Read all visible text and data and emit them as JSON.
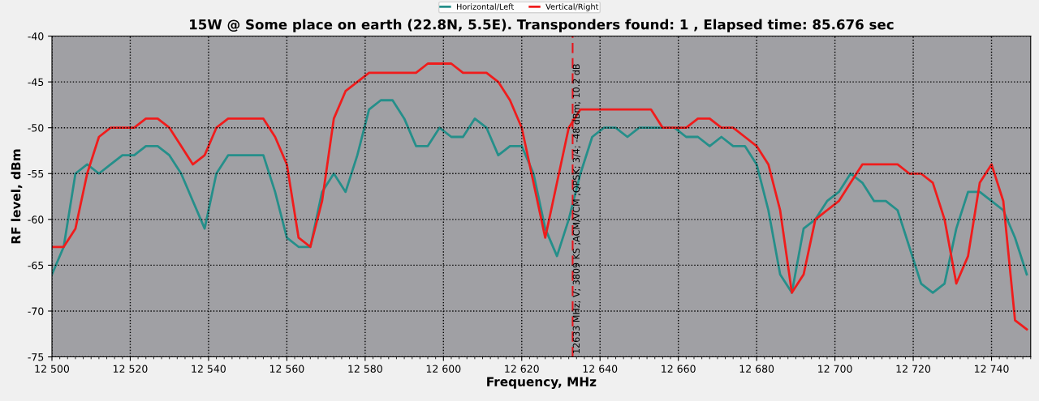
{
  "chart_data": {
    "type": "line",
    "title": "15W @ Some place on earth (22.8N, 5.5E). Transponders found: 1 , Elapsed time: 85.676 sec",
    "xlabel": "Frequency, MHz",
    "ylabel": "RF level, dBm",
    "x": [
      12500,
      12503,
      12506,
      12509,
      12512,
      12515,
      12518,
      12521,
      12524,
      12527,
      12530,
      12533,
      12536,
      12539,
      12542,
      12545,
      12548,
      12551,
      12554,
      12557,
      12560,
      12563,
      12566,
      12569,
      12572,
      12575,
      12578,
      12581,
      12584,
      12587,
      12590,
      12593,
      12596,
      12599,
      12602,
      12605,
      12608,
      12611,
      12614,
      12617,
      12620,
      12623,
      12626,
      12629,
      12632,
      12635,
      12638,
      12641,
      12644,
      12647,
      12650,
      12653,
      12656,
      12659,
      12662,
      12665,
      12668,
      12671,
      12674,
      12677,
      12680,
      12683,
      12686,
      12689,
      12692,
      12695,
      12698,
      12701,
      12704,
      12707,
      12710,
      12713,
      12716,
      12719,
      12722,
      12725,
      12728,
      12731,
      12734,
      12737,
      12740,
      12743,
      12746,
      12749
    ],
    "series": [
      {
        "name": "Horizontal/Left",
        "color": "#258f8a",
        "values": [
          -66,
          -63,
          -55,
          -54,
          -55,
          -54,
          -53,
          -53,
          -52,
          -52,
          -53,
          -55,
          -58,
          -61,
          -55,
          -53,
          -53,
          -53,
          -53,
          -57,
          -62,
          -63,
          -63,
          -57,
          -55,
          -57,
          -53,
          -48,
          -47,
          -47,
          -49,
          -52,
          -52,
          -50,
          -51,
          -51,
          -49,
          -50,
          -53,
          -52,
          -52,
          -55,
          -61,
          -64,
          -60,
          -55,
          -51,
          -50,
          -50,
          -51,
          -50,
          -50,
          -50,
          -50,
          -51,
          -51,
          -52,
          -51,
          -52,
          -52,
          -54,
          -59,
          -66,
          -68,
          -61,
          -60,
          -58,
          -57,
          -55,
          -56,
          -58,
          -58,
          -59,
          -63,
          -67,
          -68,
          -67,
          -61,
          -57,
          -57,
          -58,
          -59,
          -62,
          -66
        ]
      },
      {
        "name": "Vertical/Right",
        "color": "#f01c1c",
        "values": [
          -63,
          -63,
          -61,
          -55,
          -51,
          -50,
          -50,
          -50,
          -49,
          -49,
          -50,
          -52,
          -54,
          -53,
          -50,
          -49,
          -49,
          -49,
          -49,
          -51,
          -54,
          -62,
          -63,
          -58,
          -49,
          -46,
          -45,
          -44,
          -44,
          -44,
          -44,
          -44,
          -43,
          -43,
          -43,
          -44,
          -44,
          -44,
          -45,
          -47,
          -50,
          -56,
          -62,
          -56,
          -50,
          -48,
          -48,
          -48,
          -48,
          -48,
          -48,
          -48,
          -50,
          -50,
          -50,
          -49,
          -49,
          -50,
          -50,
          -51,
          -52,
          -54,
          -59,
          -68,
          -66,
          -60,
          -59,
          -58,
          -56,
          -54,
          -54,
          -54,
          -54,
          -55,
          -55,
          -56,
          -60,
          -67,
          -64,
          -56,
          -54,
          -58,
          -71,
          -72
        ]
      }
    ],
    "xlim": [
      12500,
      12750
    ],
    "xticks": [
      {
        "value": 12500,
        "label": "12 500"
      },
      {
        "value": 12520,
        "label": "12 520"
      },
      {
        "value": 12540,
        "label": "12 540"
      },
      {
        "value": 12560,
        "label": "12 560"
      },
      {
        "value": 12580,
        "label": "12 580"
      },
      {
        "value": 12600,
        "label": "12 600"
      },
      {
        "value": 12620,
        "label": "12 620"
      },
      {
        "value": 12640,
        "label": "12 640"
      },
      {
        "value": 12660,
        "label": "12 660"
      },
      {
        "value": 12680,
        "label": "12 680"
      },
      {
        "value": 12700,
        "label": "12 700"
      },
      {
        "value": 12720,
        "label": "12 720"
      },
      {
        "value": 12740,
        "label": "12 740"
      }
    ],
    "ylim": [
      -75,
      -40
    ],
    "yticks": [
      -75,
      -70,
      -65,
      -60,
      -55,
      -50,
      -45,
      -40
    ],
    "ref_lines": [
      {
        "axis": "x",
        "value": 12633,
        "label": "12633 MHz; V; 3809 KS ;ACM/VCM ;QPSK; 3/4; -48 dBm; 10.2 dB",
        "color": "#e8141c",
        "line_style": "dashed"
      }
    ],
    "grid": true,
    "legend": "top",
    "marker": "none",
    "line_style": "solid"
  }
}
